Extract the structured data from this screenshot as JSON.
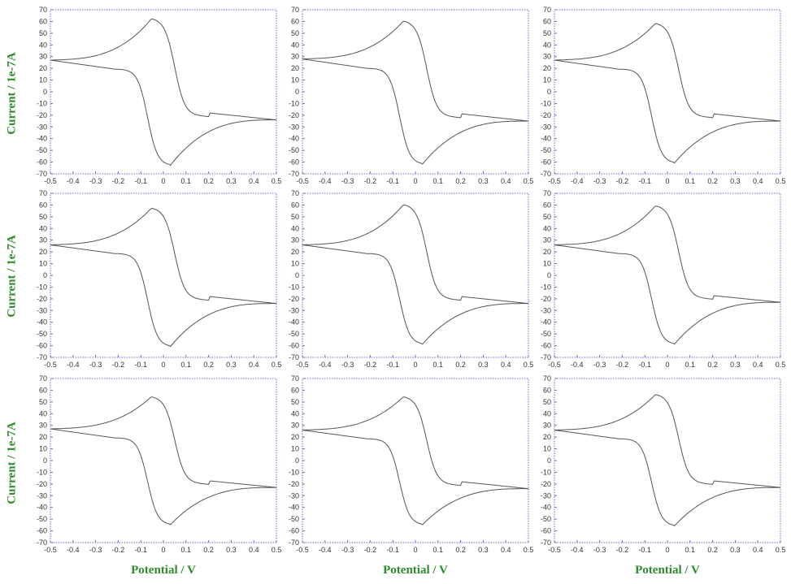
{
  "figure": {
    "ylabel": "Current / 1e-7A",
    "xlabel": "Potential / V"
  },
  "style": {
    "axis_color": "#6b6bd6",
    "trace_color": "#555555",
    "label_color": "#2e8b2e"
  },
  "chart_data": [
    {
      "type": "line",
      "panel": "row 1, col 1",
      "x_range": [
        -0.5,
        0.5
      ],
      "ylim": [
        -70,
        70
      ],
      "xticks": [
        "-0.5",
        "-0.4",
        "-0.3",
        "-0.2",
        "-0.1",
        "0",
        "0.1",
        "0.2",
        "0.3",
        "0.4",
        "0.5"
      ],
      "yticks": [
        "70",
        "60",
        "50",
        "40",
        "30",
        "20",
        "10",
        "0",
        "-10",
        "-20",
        "-30",
        "-40",
        "-50",
        "-60",
        "-70"
      ],
      "series": [
        {
          "values": {
            "anodic_peak_potential": -0.05,
            "anodic_peak_current": 63,
            "cathodic_peak_potential": 0.03,
            "cathodic_peak_current": -63,
            "current_at_-0.5": 27,
            "current_at_0.5": -24
          }
        }
      ]
    },
    {
      "type": "line",
      "panel": "row 1, col 2",
      "x_range": [
        -0.5,
        0.5
      ],
      "ylim": [
        -70,
        70
      ],
      "xticks": [
        "-0.5",
        "-0.4",
        "-0.3",
        "-0.2",
        "-0.1",
        "0",
        "0.1",
        "0.2",
        "0.3",
        "0.4",
        "0.5"
      ],
      "yticks": [
        "70",
        "60",
        "50",
        "40",
        "30",
        "20",
        "10",
        "0",
        "-10",
        "-20",
        "-30",
        "-40",
        "-50",
        "-60",
        "-70"
      ],
      "series": [
        {
          "values": {
            "anodic_peak_potential": -0.05,
            "anodic_peak_current": 61,
            "cathodic_peak_potential": 0.03,
            "cathodic_peak_current": -62,
            "current_at_-0.5": 28,
            "current_at_0.5": -25
          }
        }
      ]
    },
    {
      "type": "line",
      "panel": "row 1, col 3",
      "x_range": [
        -0.5,
        0.5
      ],
      "ylim": [
        -70,
        70
      ],
      "xticks": [
        "-0.5",
        "-0.4",
        "-0.3",
        "-0.2",
        "-0.1",
        "0",
        "0.1",
        "0.2",
        "0.3",
        "0.4",
        "0.5"
      ],
      "yticks": [
        "70",
        "60",
        "50",
        "40",
        "30",
        "20",
        "10",
        "0",
        "-10",
        "-20",
        "-30",
        "-40",
        "-50",
        "-60",
        "-70"
      ],
      "series": [
        {
          "values": {
            "anodic_peak_potential": -0.05,
            "anodic_peak_current": 59,
            "cathodic_peak_potential": 0.03,
            "cathodic_peak_current": -61,
            "current_at_-0.5": 27,
            "current_at_0.5": -25
          }
        }
      ]
    },
    {
      "type": "line",
      "panel": "row 2, col 1",
      "x_range": [
        -0.5,
        0.5
      ],
      "ylim": [
        -70,
        70
      ],
      "xticks": [
        "-0.5",
        "-0.4",
        "-0.3",
        "-0.2",
        "-0.1",
        "0",
        "0.1",
        "0.2",
        "0.3",
        "0.4",
        "0.5"
      ],
      "yticks": [
        "70",
        "60",
        "50",
        "40",
        "30",
        "20",
        "10",
        "0",
        "-10",
        "-20",
        "-30",
        "-40",
        "-50",
        "-60",
        "-70"
      ],
      "series": [
        {
          "values": {
            "anodic_peak_potential": -0.05,
            "anodic_peak_current": 58,
            "cathodic_peak_potential": 0.03,
            "cathodic_peak_current": -61,
            "current_at_-0.5": 26,
            "current_at_0.5": -24
          }
        }
      ]
    },
    {
      "type": "line",
      "panel": "row 2, col 2",
      "x_range": [
        -0.5,
        0.5
      ],
      "ylim": [
        -70,
        70
      ],
      "xticks": [
        "-0.5",
        "-0.4",
        "-0.3",
        "-0.2",
        "-0.1",
        "0",
        "0.1",
        "0.2",
        "0.3",
        "0.4",
        "0.5"
      ],
      "yticks": [
        "70",
        "60",
        "50",
        "40",
        "30",
        "20",
        "10",
        "0",
        "-10",
        "-20",
        "-30",
        "-40",
        "-50",
        "-60",
        "-70"
      ],
      "series": [
        {
          "values": {
            "anodic_peak_potential": -0.05,
            "anodic_peak_current": 61,
            "cathodic_peak_potential": 0.03,
            "cathodic_peak_current": -59,
            "current_at_-0.5": 26,
            "current_at_0.5": -24
          }
        }
      ]
    },
    {
      "type": "line",
      "panel": "row 2, col 3",
      "x_range": [
        -0.5,
        0.5
      ],
      "ylim": [
        -70,
        70
      ],
      "xticks": [
        "-0.5",
        "-0.4",
        "-0.3",
        "-0.2",
        "-0.1",
        "0",
        "0.1",
        "0.2",
        "0.3",
        "0.4",
        "0.5"
      ],
      "yticks": [
        "70",
        "60",
        "50",
        "40",
        "30",
        "20",
        "10",
        "0",
        "-10",
        "-20",
        "-30",
        "-40",
        "-50",
        "-60",
        "-70"
      ],
      "series": [
        {
          "values": {
            "anodic_peak_potential": -0.05,
            "anodic_peak_current": 60,
            "cathodic_peak_potential": 0.03,
            "cathodic_peak_current": -59,
            "current_at_-0.5": 26,
            "current_at_0.5": -23
          }
        }
      ]
    },
    {
      "type": "line",
      "panel": "row 3, col 1",
      "x_range": [
        -0.5,
        0.5
      ],
      "ylim": [
        -70,
        70
      ],
      "xticks": [
        "-0.5",
        "-0.4",
        "-0.3",
        "-0.2",
        "-0.1",
        "0",
        "0.1",
        "0.2",
        "0.3",
        "0.4",
        "0.5"
      ],
      "yticks": [
        "70",
        "60",
        "50",
        "40",
        "30",
        "20",
        "10",
        "0",
        "-10",
        "-20",
        "-30",
        "-40",
        "-50",
        "-60",
        "-70"
      ],
      "series": [
        {
          "values": {
            "anodic_peak_potential": -0.05,
            "anodic_peak_current": 55,
            "cathodic_peak_potential": 0.03,
            "cathodic_peak_current": -55,
            "current_at_-0.5": 27,
            "current_at_0.5": -23
          }
        }
      ]
    },
    {
      "type": "line",
      "panel": "row 3, col 2",
      "x_range": [
        -0.5,
        0.5
      ],
      "ylim": [
        -70,
        70
      ],
      "xticks": [
        "-0.5",
        "-0.4",
        "-0.3",
        "-0.2",
        "-0.1",
        "0",
        "0.1",
        "0.2",
        "0.3",
        "0.4",
        "0.5"
      ],
      "yticks": [
        "70",
        "60",
        "50",
        "40",
        "30",
        "20",
        "10",
        "0",
        "-10",
        "-20",
        "-30",
        "-40",
        "-50",
        "-60",
        "-70"
      ],
      "series": [
        {
          "values": {
            "anodic_peak_potential": -0.05,
            "anodic_peak_current": 55,
            "cathodic_peak_potential": 0.03,
            "cathodic_peak_current": -55,
            "current_at_-0.5": 26,
            "current_at_0.5": -24
          }
        }
      ]
    },
    {
      "type": "line",
      "panel": "row 3, col 3",
      "x_range": [
        -0.5,
        0.5
      ],
      "ylim": [
        -70,
        70
      ],
      "xticks": [
        "-0.5",
        "-0.4",
        "-0.3",
        "-0.2",
        "-0.1",
        "0",
        "0.1",
        "0.2",
        "0.3",
        "0.4",
        "0.5"
      ],
      "yticks": [
        "70",
        "60",
        "50",
        "40",
        "30",
        "20",
        "10",
        "0",
        "-10",
        "-20",
        "-30",
        "-40",
        "-50",
        "-60",
        "-70"
      ],
      "series": [
        {
          "values": {
            "anodic_peak_potential": -0.05,
            "anodic_peak_current": 57,
            "cathodic_peak_potential": 0.03,
            "cathodic_peak_current": -56,
            "current_at_-0.5": 26,
            "current_at_0.5": -23
          }
        }
      ]
    }
  ]
}
